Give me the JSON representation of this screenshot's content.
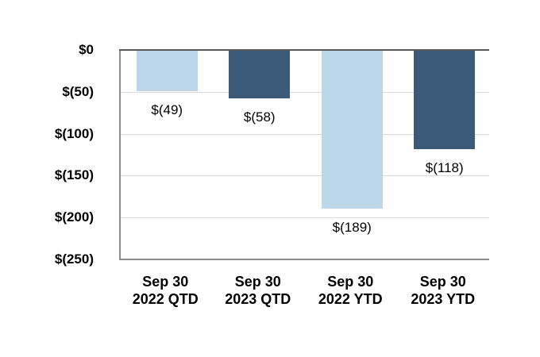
{
  "chart_data": {
    "type": "bar",
    "title": "",
    "xlabel": "",
    "ylabel": "",
    "ylim": [
      -250,
      0
    ],
    "grid": true,
    "legend": "none",
    "categories": [
      [
        "Sep 30",
        "2022 QTD"
      ],
      [
        "Sep 30",
        "2023 QTD"
      ],
      [
        "Sep 30",
        "2022 YTD"
      ],
      [
        "Sep 30",
        "2023 YTD"
      ]
    ],
    "values": [
      -49,
      -58,
      -189,
      -118
    ],
    "data_labels": [
      "$(49)",
      "$(58)",
      "$(189)",
      "$(118)"
    ],
    "bar_colors": [
      "#BCD6EA",
      "#3A5A78",
      "#BCD6EA",
      "#3A5A78"
    ],
    "y_ticks": [
      {
        "label": "$0",
        "value": 0
      },
      {
        "label": "$(50)",
        "value": -50
      },
      {
        "label": "$(100)",
        "value": -100
      },
      {
        "label": "$(150)",
        "value": -150
      },
      {
        "label": "$(200)",
        "value": -200
      },
      {
        "label": "$(250)",
        "value": -250
      }
    ],
    "colors": {
      "series_light": "#BCD6EA",
      "series_dark": "#3A5A78",
      "gridline": "#D9D9D9",
      "zero_line": "#595959",
      "axis_line": "#8C8C8C",
      "text": "#000000",
      "background": "#FFFFFF"
    }
  }
}
